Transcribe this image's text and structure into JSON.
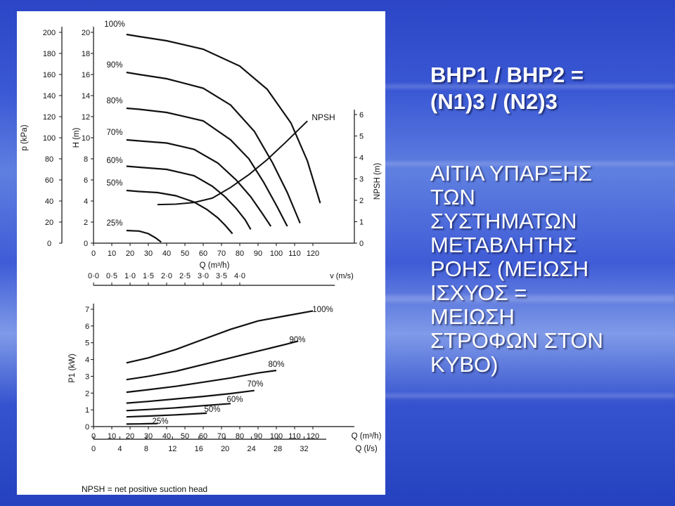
{
  "slide": {
    "formula_lines": [
      "BHP1 / BHP2 =",
      "(N1)3 / (N2)3"
    ],
    "bullet_lines": [
      "ΑΙΤΙΑ ΥΠΑΡΞΗΣ",
      "ΤΩΝ",
      "ΣΥΣΤΗΜΑΤΩΝ",
      "ΜΕΤΑΒΛΗΤΗΣ",
      "ΡΟΗΣ (ΜΕΙΩΣΗ",
      "ΙΣΧΥΟΣ =",
      "ΜΕΙΩΣΗ",
      "ΣΤΡΟΦΩΝ ΣΤΟΝ",
      "ΚΥΒΟ)"
    ]
  },
  "footnote": "NPSH = net positive suction head",
  "chart_data": [
    {
      "type": "line",
      "title": "",
      "x_label": "Q (m³/h)",
      "x_ticks": [
        "0",
        "10",
        "20",
        "30",
        "40",
        "50",
        "60",
        "70",
        "80",
        "90",
        "100",
        "110",
        "120"
      ],
      "xlim": [
        0,
        130
      ],
      "y_label": "H (m)",
      "y_ticks": [
        "0",
        "2",
        "4",
        "6",
        "8",
        "10",
        "12",
        "14",
        "16",
        "18",
        "20"
      ],
      "ylim": [
        0,
        20
      ],
      "y2_label": "p (kPa)",
      "y2_ticks": [
        "0",
        "20",
        "40",
        "60",
        "80",
        "100",
        "120",
        "140",
        "160",
        "180",
        "200"
      ],
      "y3_label": "NPSH (m)",
      "y3_ticks": [
        "0",
        "1",
        "2",
        "3",
        "4",
        "5",
        "6"
      ],
      "v_axis_label": "v (m/s)",
      "v_ticks": [
        "0·0",
        "0·5",
        "1·0",
        "1·5",
        "2·0",
        "2·5",
        "3·0",
        "3·5",
        "4·0"
      ],
      "grid": false,
      "series": [
        {
          "name": "100%",
          "x": [
            18,
            25,
            40,
            60,
            80,
            95,
            108,
            117,
            124
          ],
          "y": [
            19.8,
            19.6,
            19.2,
            18.4,
            16.8,
            14.6,
            11.4,
            7.8,
            3.8
          ]
        },
        {
          "name": "90%",
          "x": [
            18,
            25,
            40,
            60,
            75,
            88,
            98,
            106,
            113
          ],
          "y": [
            16.2,
            16.0,
            15.6,
            14.7,
            13.1,
            10.6,
            7.6,
            4.8,
            1.9
          ]
        },
        {
          "name": "80%",
          "x": [
            18,
            25,
            40,
            60,
            75,
            85,
            93,
            100,
            106
          ],
          "y": [
            12.8,
            12.7,
            12.4,
            11.6,
            9.8,
            8.0,
            5.8,
            3.6,
            1.6
          ]
        },
        {
          "name": "70%",
          "x": [
            18,
            25,
            40,
            55,
            68,
            78,
            86,
            92,
            97
          ],
          "y": [
            9.8,
            9.7,
            9.5,
            8.9,
            7.6,
            6.0,
            4.4,
            2.9,
            1.6
          ]
        },
        {
          "name": "60%",
          "x": [
            18,
            25,
            40,
            55,
            65,
            72,
            78,
            83,
            86
          ],
          "y": [
            7.3,
            7.2,
            7.0,
            6.4,
            5.4,
            4.4,
            3.3,
            2.2,
            1.3
          ]
        },
        {
          "name": "50%",
          "x": [
            18,
            25,
            35,
            45,
            55,
            62,
            68,
            72,
            76
          ],
          "y": [
            5.0,
            4.9,
            4.8,
            4.5,
            3.9,
            3.2,
            2.4,
            1.7,
            0.9
          ]
        },
        {
          "name": "25%",
          "x": [
            18,
            25,
            30,
            34,
            37
          ],
          "y": [
            1.2,
            1.15,
            0.9,
            0.5,
            0.1
          ]
        },
        {
          "name": "NPSH",
          "axis": "NPSH (m)",
          "x": [
            35,
            45,
            55,
            65,
            75,
            85,
            95,
            105,
            117
          ],
          "y": [
            1.8,
            1.82,
            1.9,
            2.1,
            2.6,
            3.2,
            3.9,
            4.7,
            5.7
          ]
        }
      ]
    },
    {
      "type": "line",
      "title": "",
      "x_label": "Q (m³/h)",
      "x_ticks": [
        "0",
        "10",
        "20",
        "30",
        "40",
        "50",
        "60",
        "70",
        "80",
        "90",
        "100",
        "110",
        "120"
      ],
      "xlim": [
        0,
        130
      ],
      "x2_label": "Q (l/s)",
      "x2_ticks": [
        "0",
        "4",
        "8",
        "12",
        "16",
        "20",
        "24",
        "28",
        "32"
      ],
      "y_label": "P1 (kW)",
      "y_ticks": [
        "0",
        "1",
        "2",
        "3",
        "4",
        "5",
        "6",
        "7"
      ],
      "ylim": [
        0,
        7
      ],
      "grid": false,
      "series": [
        {
          "name": "100%",
          "x": [
            18,
            30,
            45,
            60,
            75,
            90,
            105,
            120
          ],
          "y": [
            3.8,
            4.1,
            4.6,
            5.2,
            5.8,
            6.3,
            6.6,
            6.9
          ]
        },
        {
          "name": "90%",
          "x": [
            18,
            30,
            45,
            60,
            75,
            90,
            105,
            112
          ],
          "y": [
            2.8,
            3.0,
            3.3,
            3.7,
            4.1,
            4.5,
            4.9,
            5.1
          ]
        },
        {
          "name": "80%",
          "x": [
            18,
            30,
            45,
            60,
            75,
            90,
            100
          ],
          "y": [
            2.05,
            2.2,
            2.4,
            2.65,
            2.9,
            3.2,
            3.35
          ]
        },
        {
          "name": "70%",
          "x": [
            18,
            30,
            45,
            60,
            75,
            88
          ],
          "y": [
            1.4,
            1.5,
            1.65,
            1.8,
            1.97,
            2.15
          ]
        },
        {
          "name": "60%",
          "x": [
            18,
            30,
            45,
            60,
            75
          ],
          "y": [
            0.95,
            1.02,
            1.12,
            1.25,
            1.37
          ]
        },
        {
          "name": "50%",
          "x": [
            18,
            30,
            45,
            55,
            62
          ],
          "y": [
            0.58,
            0.63,
            0.7,
            0.76,
            0.8
          ]
        },
        {
          "name": "25%",
          "x": [
            18,
            25,
            30,
            35
          ],
          "y": [
            0.15,
            0.16,
            0.17,
            0.18
          ]
        }
      ]
    }
  ]
}
